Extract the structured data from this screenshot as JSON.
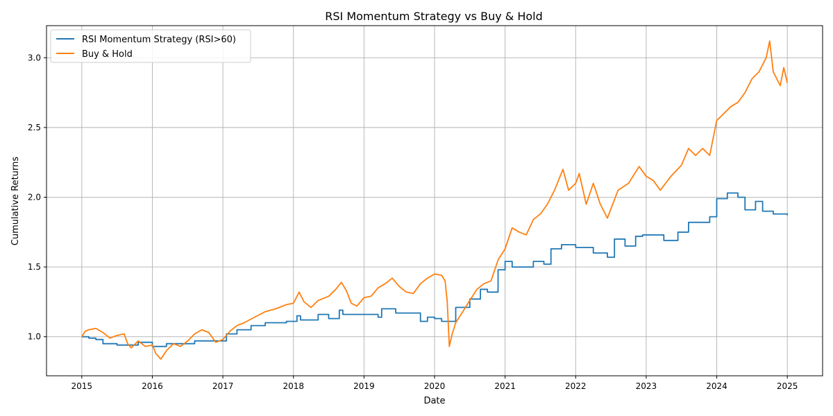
{
  "chart_data": {
    "type": "line",
    "title": "RSI Momentum Strategy vs Buy & Hold",
    "xlabel": "Date",
    "ylabel": "Cumulative Returns",
    "xlim": [
      2014.5,
      2025.5
    ],
    "ylim": [
      0.72,
      3.23
    ],
    "x_ticks": [
      2015,
      2016,
      2017,
      2018,
      2019,
      2020,
      2021,
      2022,
      2023,
      2024,
      2025
    ],
    "x_tick_labels": [
      "2015",
      "2016",
      "2017",
      "2018",
      "2019",
      "2020",
      "2021",
      "2022",
      "2023",
      "2024",
      "2025"
    ],
    "y_ticks": [
      1.0,
      1.5,
      2.0,
      2.5,
      3.0
    ],
    "y_tick_labels": [
      "1.0",
      "1.5",
      "2.0",
      "2.5",
      "3.0"
    ],
    "grid": true,
    "legend_position": "top-left",
    "series": [
      {
        "name": "RSI Momentum Strategy (RSI>60)",
        "color": "#1f77b4",
        "style": "step",
        "points": [
          [
            2015.0,
            1.0
          ],
          [
            2015.1,
            0.99
          ],
          [
            2015.2,
            0.98
          ],
          [
            2015.3,
            0.95
          ],
          [
            2015.5,
            0.94
          ],
          [
            2015.7,
            0.94
          ],
          [
            2015.8,
            0.96
          ],
          [
            2016.0,
            0.93
          ],
          [
            2016.2,
            0.95
          ],
          [
            2016.4,
            0.95
          ],
          [
            2016.6,
            0.97
          ],
          [
            2016.9,
            0.97
          ],
          [
            2017.05,
            1.02
          ],
          [
            2017.2,
            1.05
          ],
          [
            2017.4,
            1.08
          ],
          [
            2017.6,
            1.1
          ],
          [
            2017.9,
            1.11
          ],
          [
            2018.05,
            1.15
          ],
          [
            2018.1,
            1.12
          ],
          [
            2018.35,
            1.16
          ],
          [
            2018.5,
            1.13
          ],
          [
            2018.65,
            1.19
          ],
          [
            2018.7,
            1.16
          ],
          [
            2019.0,
            1.16
          ],
          [
            2019.2,
            1.14
          ],
          [
            2019.25,
            1.2
          ],
          [
            2019.45,
            1.17
          ],
          [
            2019.7,
            1.17
          ],
          [
            2019.8,
            1.11
          ],
          [
            2019.9,
            1.14
          ],
          [
            2020.0,
            1.13
          ],
          [
            2020.1,
            1.11
          ],
          [
            2020.3,
            1.21
          ],
          [
            2020.5,
            1.27
          ],
          [
            2020.65,
            1.34
          ],
          [
            2020.75,
            1.32
          ],
          [
            2020.9,
            1.48
          ],
          [
            2021.0,
            1.54
          ],
          [
            2021.1,
            1.5
          ],
          [
            2021.4,
            1.54
          ],
          [
            2021.55,
            1.52
          ],
          [
            2021.65,
            1.63
          ],
          [
            2021.8,
            1.66
          ],
          [
            2022.0,
            1.64
          ],
          [
            2022.2,
            1.64
          ],
          [
            2022.25,
            1.6
          ],
          [
            2022.45,
            1.57
          ],
          [
            2022.55,
            1.7
          ],
          [
            2022.7,
            1.65
          ],
          [
            2022.85,
            1.72
          ],
          [
            2022.95,
            1.73
          ],
          [
            2023.1,
            1.73
          ],
          [
            2023.25,
            1.69
          ],
          [
            2023.45,
            1.75
          ],
          [
            2023.6,
            1.82
          ],
          [
            2023.75,
            1.82
          ],
          [
            2023.9,
            1.86
          ],
          [
            2024.0,
            1.99
          ],
          [
            2024.15,
            2.03
          ],
          [
            2024.3,
            2.0
          ],
          [
            2024.4,
            1.91
          ],
          [
            2024.55,
            1.97
          ],
          [
            2024.65,
            1.9
          ],
          [
            2024.8,
            1.88
          ],
          [
            2024.95,
            1.88
          ],
          [
            2025.0,
            1.87
          ]
        ]
      },
      {
        "name": "Buy & Hold",
        "color": "#ff7f0e",
        "style": "line",
        "points": [
          [
            2015.0,
            1.0
          ],
          [
            2015.05,
            1.04
          ],
          [
            2015.1,
            1.05
          ],
          [
            2015.2,
            1.06
          ],
          [
            2015.3,
            1.03
          ],
          [
            2015.4,
            0.99
          ],
          [
            2015.5,
            1.01
          ],
          [
            2015.6,
            1.02
          ],
          [
            2015.65,
            0.95
          ],
          [
            2015.7,
            0.92
          ],
          [
            2015.8,
            0.97
          ],
          [
            2015.9,
            0.93
          ],
          [
            2016.0,
            0.94
          ],
          [
            2016.05,
            0.88
          ],
          [
            2016.12,
            0.84
          ],
          [
            2016.2,
            0.9
          ],
          [
            2016.3,
            0.95
          ],
          [
            2016.4,
            0.93
          ],
          [
            2016.5,
            0.97
          ],
          [
            2016.6,
            1.02
          ],
          [
            2016.7,
            1.05
          ],
          [
            2016.8,
            1.03
          ],
          [
            2016.9,
            0.96
          ],
          [
            2017.0,
            0.98
          ],
          [
            2017.1,
            1.04
          ],
          [
            2017.2,
            1.08
          ],
          [
            2017.3,
            1.1
          ],
          [
            2017.45,
            1.14
          ],
          [
            2017.6,
            1.18
          ],
          [
            2017.75,
            1.2
          ],
          [
            2017.9,
            1.23
          ],
          [
            2018.0,
            1.24
          ],
          [
            2018.08,
            1.32
          ],
          [
            2018.15,
            1.25
          ],
          [
            2018.25,
            1.21
          ],
          [
            2018.35,
            1.26
          ],
          [
            2018.5,
            1.29
          ],
          [
            2018.6,
            1.34
          ],
          [
            2018.68,
            1.39
          ],
          [
            2018.75,
            1.33
          ],
          [
            2018.82,
            1.24
          ],
          [
            2018.9,
            1.22
          ],
          [
            2019.0,
            1.28
          ],
          [
            2019.1,
            1.29
          ],
          [
            2019.2,
            1.35
          ],
          [
            2019.3,
            1.38
          ],
          [
            2019.4,
            1.42
          ],
          [
            2019.5,
            1.36
          ],
          [
            2019.6,
            1.32
          ],
          [
            2019.7,
            1.31
          ],
          [
            2019.8,
            1.38
          ],
          [
            2019.9,
            1.42
          ],
          [
            2020.0,
            1.45
          ],
          [
            2020.1,
            1.44
          ],
          [
            2020.15,
            1.4
          ],
          [
            2020.18,
            1.25
          ],
          [
            2020.21,
            0.93
          ],
          [
            2020.25,
            1.02
          ],
          [
            2020.3,
            1.1
          ],
          [
            2020.4,
            1.18
          ],
          [
            2020.5,
            1.26
          ],
          [
            2020.6,
            1.34
          ],
          [
            2020.7,
            1.38
          ],
          [
            2020.8,
            1.4
          ],
          [
            2020.9,
            1.55
          ],
          [
            2021.0,
            1.63
          ],
          [
            2021.1,
            1.78
          ],
          [
            2021.2,
            1.75
          ],
          [
            2021.3,
            1.73
          ],
          [
            2021.4,
            1.84
          ],
          [
            2021.5,
            1.88
          ],
          [
            2021.6,
            1.95
          ],
          [
            2021.7,
            2.05
          ],
          [
            2021.78,
            2.15
          ],
          [
            2021.82,
            2.2
          ],
          [
            2021.9,
            2.05
          ],
          [
            2022.0,
            2.1
          ],
          [
            2022.05,
            2.17
          ],
          [
            2022.15,
            1.95
          ],
          [
            2022.25,
            2.1
          ],
          [
            2022.35,
            1.95
          ],
          [
            2022.45,
            1.85
          ],
          [
            2022.6,
            2.05
          ],
          [
            2022.75,
            2.1
          ],
          [
            2022.9,
            2.22
          ],
          [
            2023.0,
            2.15
          ],
          [
            2023.1,
            2.12
          ],
          [
            2023.2,
            2.05
          ],
          [
            2023.35,
            2.15
          ],
          [
            2023.5,
            2.23
          ],
          [
            2023.6,
            2.35
          ],
          [
            2023.7,
            2.3
          ],
          [
            2023.8,
            2.35
          ],
          [
            2023.9,
            2.3
          ],
          [
            2024.0,
            2.55
          ],
          [
            2024.1,
            2.6
          ],
          [
            2024.2,
            2.65
          ],
          [
            2024.3,
            2.68
          ],
          [
            2024.4,
            2.75
          ],
          [
            2024.5,
            2.85
          ],
          [
            2024.6,
            2.9
          ],
          [
            2024.7,
            3.0
          ],
          [
            2024.75,
            3.12
          ],
          [
            2024.8,
            2.9
          ],
          [
            2024.85,
            2.85
          ],
          [
            2024.9,
            2.8
          ],
          [
            2024.95,
            2.93
          ],
          [
            2025.0,
            2.82
          ]
        ]
      }
    ]
  },
  "colors": {
    "strategy": "#1f77b4",
    "buy_hold": "#ff7f0e",
    "grid": "#b0b0b0"
  }
}
